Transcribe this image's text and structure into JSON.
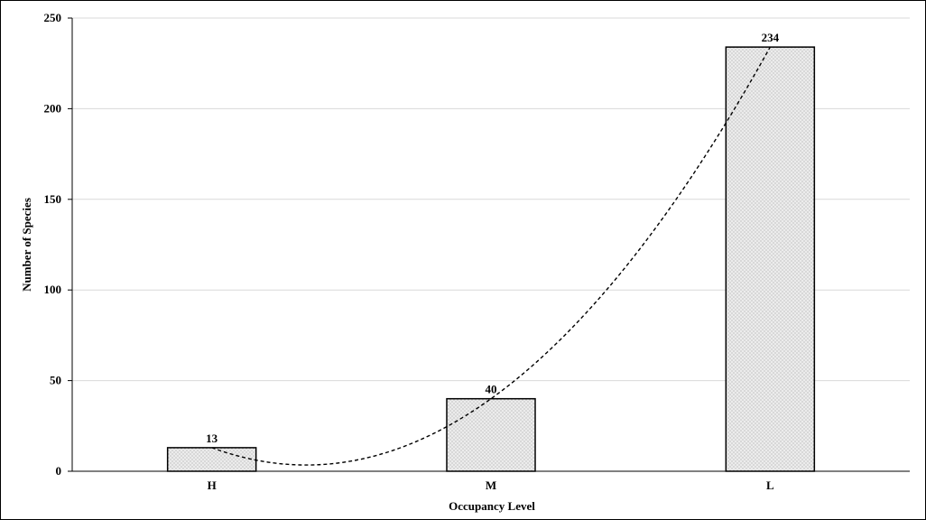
{
  "chart_data": {
    "type": "bar",
    "categories": [
      "H",
      "M",
      "L"
    ],
    "values": [
      13,
      40,
      234
    ],
    "data_labels": [
      "13",
      "40",
      "234"
    ],
    "title": "",
    "xlabel": "Occupancy Level",
    "ylabel": "Number of Species",
    "ylim": [
      0,
      250
    ],
    "yticks": [
      0,
      50,
      100,
      150,
      200,
      250
    ],
    "ytick_labels": [
      "0",
      "50",
      "100",
      "150",
      "200",
      "250"
    ],
    "grid": "horizontal",
    "legend": "none",
    "bar_fill": "dotted",
    "trendline": {
      "type": "polynomial",
      "order": 2,
      "style": "dashed",
      "points": [
        13,
        40,
        234
      ]
    },
    "colors": {
      "bar_fill_base": "#ececec",
      "bar_dots": "#8a8a8a",
      "bar_edge": "#000000",
      "grid": "#d9d9d9",
      "axis": "#000000",
      "trendline": "#000000"
    }
  }
}
